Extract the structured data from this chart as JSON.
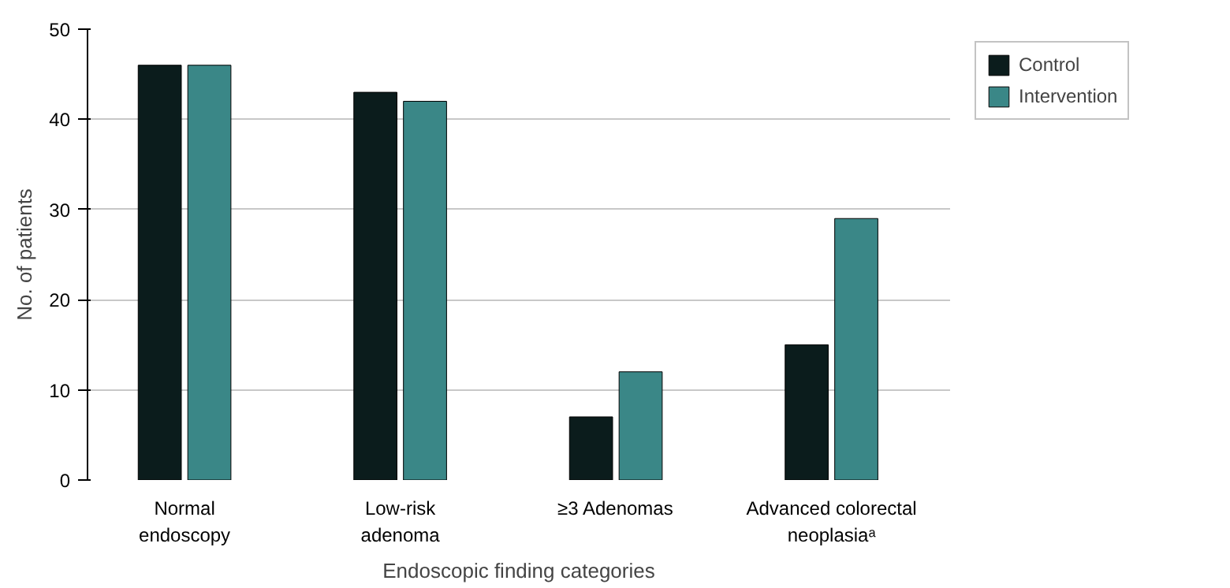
{
  "chart_data": {
    "type": "bar",
    "xlabel": "Endoscopic finding categories",
    "ylabel": "No. of patients",
    "categories": [
      "Normal\nendoscopy",
      "Low-risk\nadenoma",
      "≥3 Adenomas",
      "Advanced colorectal\nneoplasiaᵃ"
    ],
    "series": [
      {
        "name": "Control",
        "color": "#0b1c1c",
        "values": [
          46,
          43,
          7,
          15
        ]
      },
      {
        "name": "Intervention",
        "color": "#3a8787",
        "values": [
          46,
          42,
          12,
          29
        ]
      }
    ],
    "ylim": [
      0,
      50
    ],
    "yticks": [
      0,
      10,
      20,
      30,
      40,
      50
    ],
    "grid": "y",
    "legend": "top right"
  }
}
